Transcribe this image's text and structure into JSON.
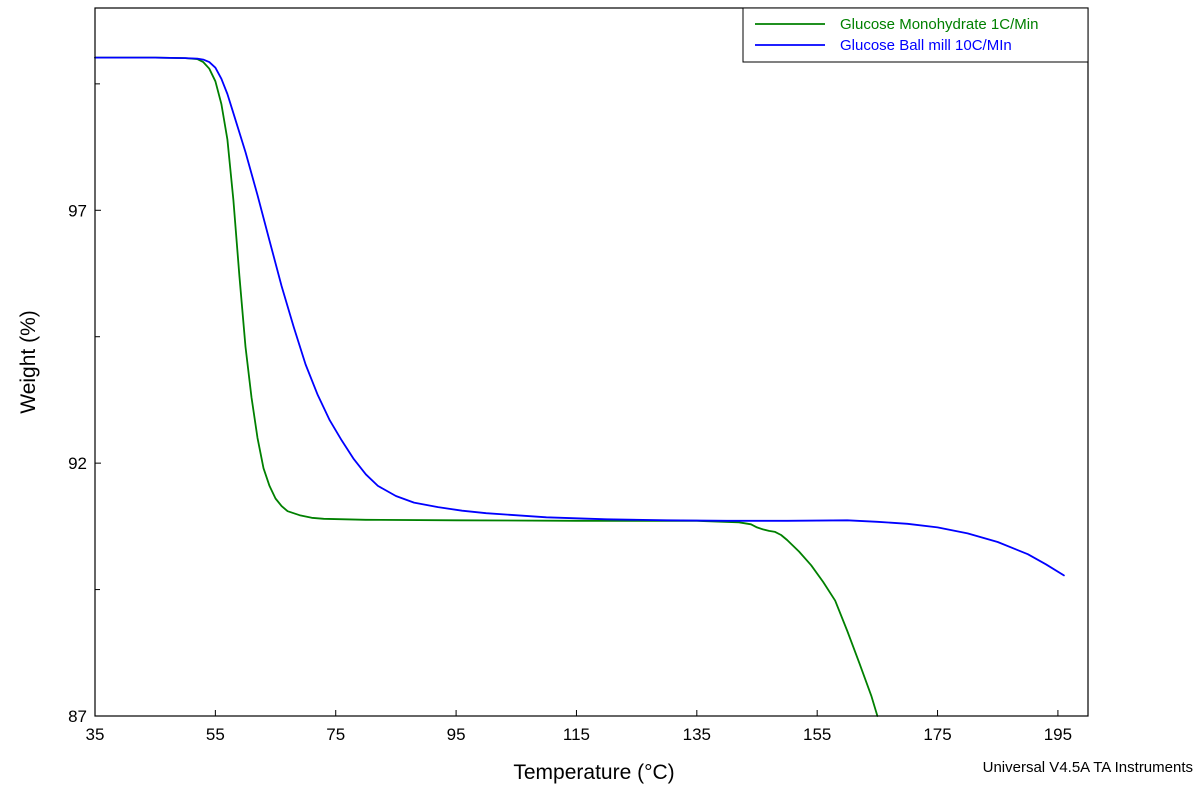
{
  "chart_data": {
    "type": "line",
    "title": "",
    "xlabel": "Temperature (°C)",
    "ylabel": "Weight (%)",
    "xlim": [
      35,
      200
    ],
    "ylim": [
      87,
      101
    ],
    "x_ticks": [
      35,
      55,
      75,
      95,
      115,
      135,
      155,
      175,
      195
    ],
    "y_ticks": [
      87,
      92,
      97
    ],
    "y_minor_ticks": [
      89.5,
      94.5,
      99.5
    ],
    "grid": false,
    "legend_position": "top-right",
    "series": [
      {
        "name": "Glucose Monohydrate 1C/Min",
        "color": "#008000",
        "points": [
          [
            35,
            100.02
          ],
          [
            45,
            100.02
          ],
          [
            50,
            100.01
          ],
          [
            52,
            99.99
          ],
          [
            53,
            99.93
          ],
          [
            54,
            99.8
          ],
          [
            55,
            99.55
          ],
          [
            56,
            99.1
          ],
          [
            57,
            98.4
          ],
          [
            58,
            97.2
          ],
          [
            59,
            95.7
          ],
          [
            60,
            94.3
          ],
          [
            61,
            93.3
          ],
          [
            62,
            92.5
          ],
          [
            63,
            91.9
          ],
          [
            64,
            91.55
          ],
          [
            65,
            91.3
          ],
          [
            66,
            91.15
          ],
          [
            67,
            91.05
          ],
          [
            69,
            90.97
          ],
          [
            71,
            90.92
          ],
          [
            73,
            90.9
          ],
          [
            80,
            90.88
          ],
          [
            95,
            90.87
          ],
          [
            115,
            90.86
          ],
          [
            135,
            90.86
          ],
          [
            142,
            90.83
          ],
          [
            144,
            90.79
          ],
          [
            145,
            90.73
          ],
          [
            146,
            90.69
          ],
          [
            147,
            90.66
          ],
          [
            148,
            90.64
          ],
          [
            149,
            90.58
          ],
          [
            150,
            90.48
          ],
          [
            152,
            90.25
          ],
          [
            154,
            89.98
          ],
          [
            156,
            89.65
          ],
          [
            158,
            89.28
          ],
          [
            160,
            88.68
          ],
          [
            162,
            88.05
          ],
          [
            164,
            87.4
          ],
          [
            165,
            87.0
          ]
        ]
      },
      {
        "name": "Glucose Ball mill 10C/MIn",
        "color": "#0000ff",
        "points": [
          [
            35,
            100.02
          ],
          [
            45,
            100.02
          ],
          [
            50,
            100.01
          ],
          [
            52,
            100.0
          ],
          [
            53,
            99.98
          ],
          [
            54,
            99.93
          ],
          [
            55,
            99.82
          ],
          [
            56,
            99.6
          ],
          [
            57,
            99.3
          ],
          [
            58,
            98.92
          ],
          [
            60,
            98.15
          ],
          [
            62,
            97.3
          ],
          [
            64,
            96.4
          ],
          [
            66,
            95.5
          ],
          [
            68,
            94.7
          ],
          [
            70,
            93.95
          ],
          [
            72,
            93.35
          ],
          [
            74,
            92.85
          ],
          [
            76,
            92.45
          ],
          [
            78,
            92.08
          ],
          [
            80,
            91.78
          ],
          [
            82,
            91.55
          ],
          [
            85,
            91.35
          ],
          [
            88,
            91.22
          ],
          [
            92,
            91.13
          ],
          [
            96,
            91.06
          ],
          [
            100,
            91.01
          ],
          [
            110,
            90.93
          ],
          [
            120,
            90.89
          ],
          [
            130,
            90.87
          ],
          [
            140,
            90.86
          ],
          [
            150,
            90.86
          ],
          [
            160,
            90.87
          ],
          [
            165,
            90.84
          ],
          [
            170,
            90.8
          ],
          [
            175,
            90.73
          ],
          [
            180,
            90.61
          ],
          [
            185,
            90.44
          ],
          [
            190,
            90.2
          ],
          [
            193,
            90.0
          ],
          [
            196,
            89.78
          ]
        ]
      }
    ]
  },
  "footer": {
    "software": "Universal V4.5A TA Instruments"
  }
}
